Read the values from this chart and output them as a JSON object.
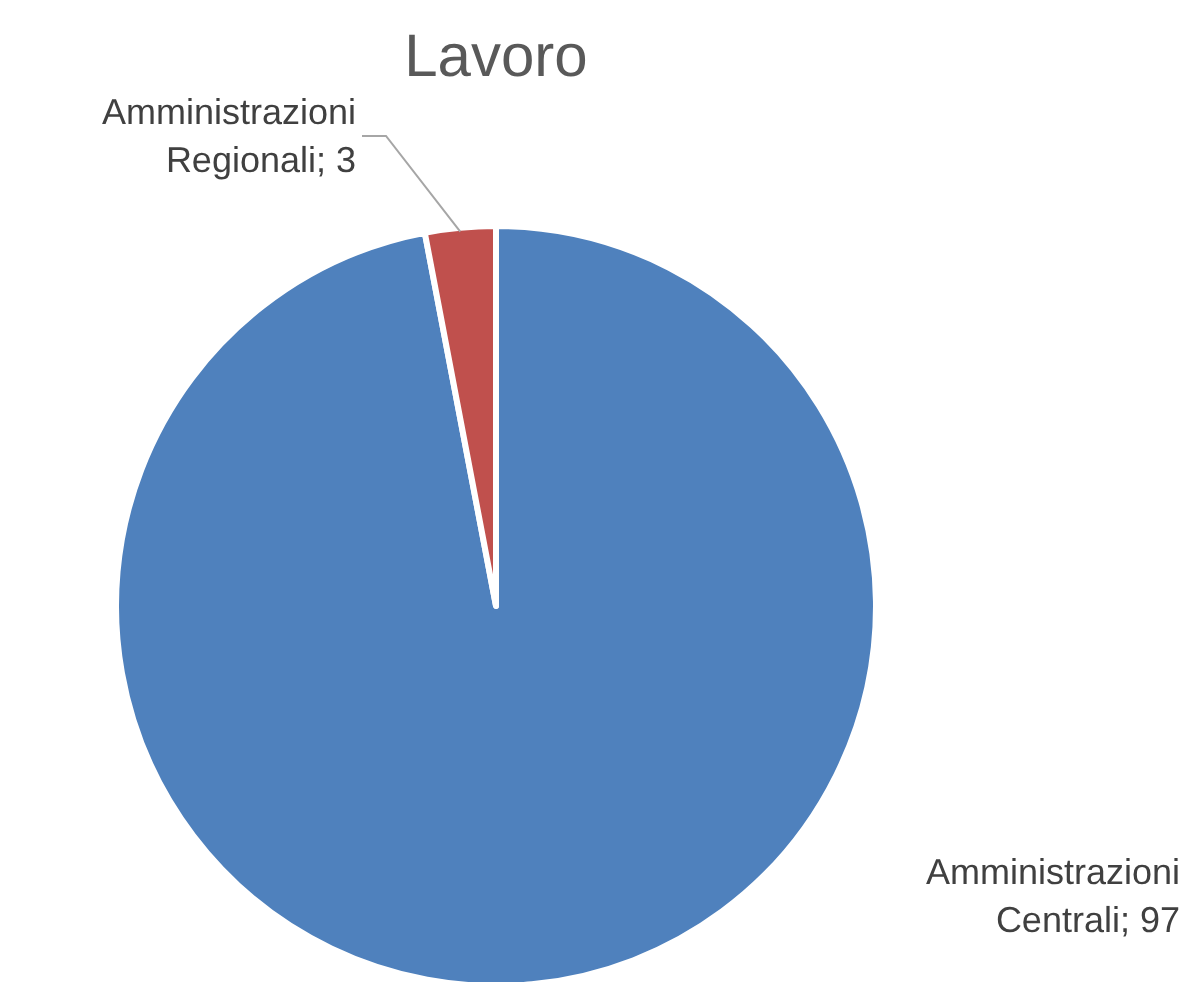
{
  "chart_data": {
    "type": "pie",
    "title": "Lavoro",
    "categories": [
      "Amministrazioni Centrali; 97",
      "Amministrazioni Regionali; 3"
    ],
    "values": [
      97,
      3
    ],
    "colors": [
      "#4f81bd",
      "#c0504d"
    ],
    "legend": false
  }
}
